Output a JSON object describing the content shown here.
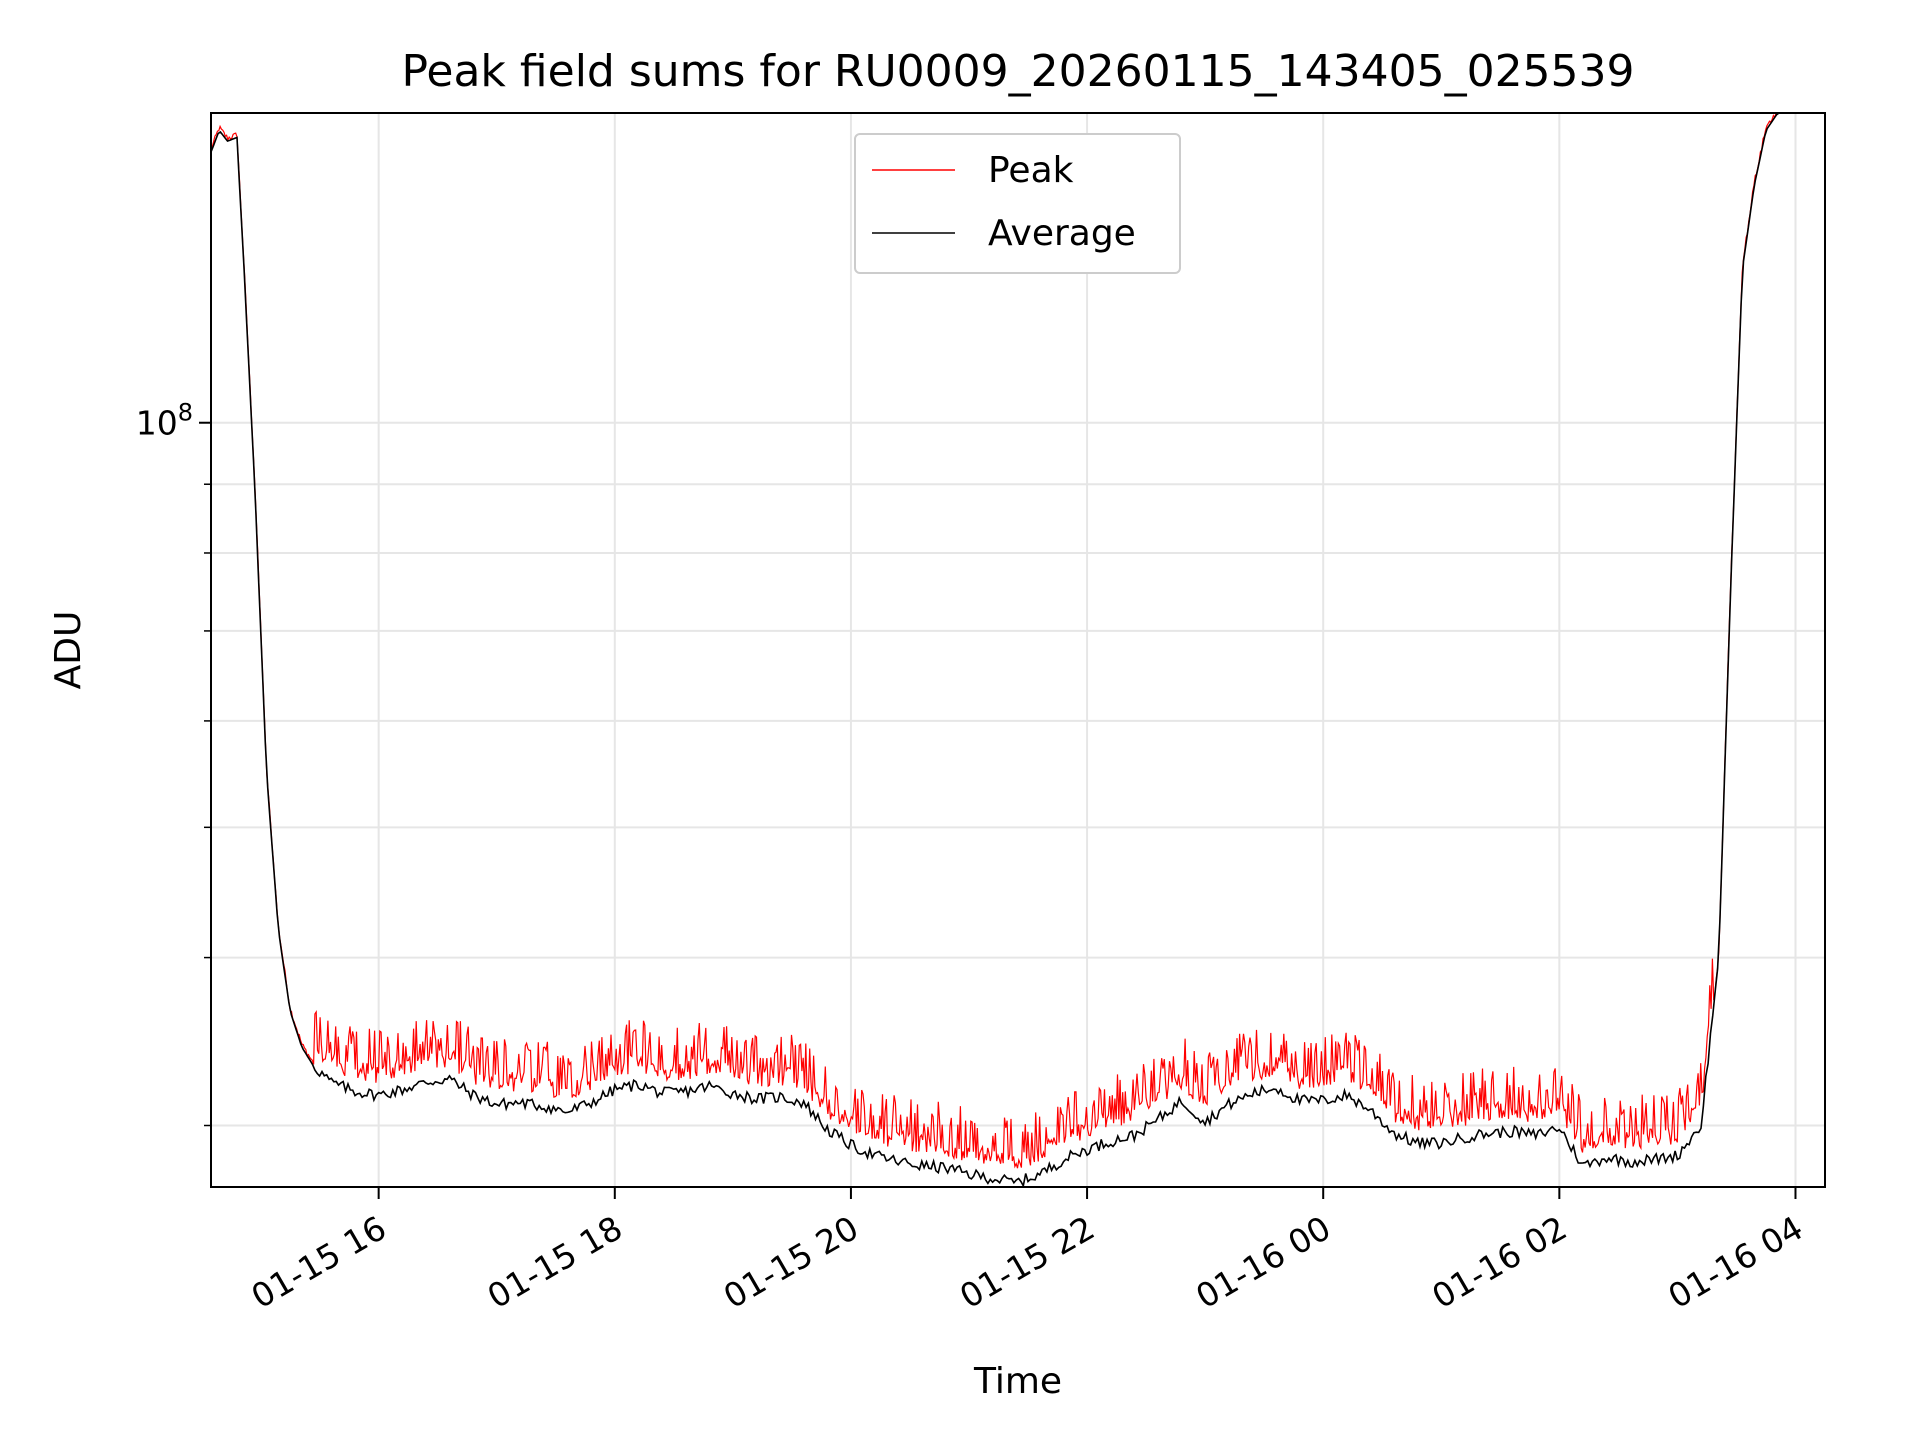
{
  "chart_data": {
    "type": "line",
    "title": "Peak field sums for RU0009_20260115_143405_025539",
    "xlabel": "Time",
    "ylabel": "ADU",
    "yscale": "log",
    "ylim": [
      27000000,
      170000000
    ],
    "xlim_hours": [
      14.58,
      28.25
    ],
    "y_tick_major": [
      {
        "value": 100000000,
        "base": "10",
        "exp": "8"
      }
    ],
    "y_tick_minor": [
      30000000,
      40000000,
      50000000,
      60000000,
      70000000,
      80000000,
      90000000,
      200000000
    ],
    "x_ticks": [
      {
        "hour": 16,
        "label": "01-15 16"
      },
      {
        "hour": 18,
        "label": "01-15 18"
      },
      {
        "hour": 20,
        "label": "01-15 20"
      },
      {
        "hour": 22,
        "label": "01-15 22"
      },
      {
        "hour": 24,
        "label": "01-16 00"
      },
      {
        "hour": 26,
        "label": "01-16 02"
      },
      {
        "hour": 28,
        "label": "01-16 04"
      }
    ],
    "grid": true,
    "legend_position": "top-center",
    "series": [
      {
        "name": "Peak",
        "color": "#ff0000",
        "role": "peak"
      },
      {
        "name": "Average",
        "color": "#000000",
        "role": "average",
        "x_hours": [
          14.58,
          14.65,
          14.72,
          14.8,
          14.86,
          14.95,
          15.05,
          15.15,
          15.25,
          15.35,
          15.45,
          15.6,
          15.8,
          16.0,
          16.2,
          16.4,
          16.6,
          16.8,
          17.0,
          17.2,
          17.4,
          17.6,
          17.8,
          18.0,
          18.2,
          18.4,
          18.6,
          18.8,
          19.0,
          19.2,
          19.4,
          19.6,
          19.8,
          20.0,
          20.2,
          20.4,
          20.6,
          20.8,
          21.0,
          21.2,
          21.4,
          21.6,
          21.8,
          22.0,
          22.2,
          22.4,
          22.6,
          22.8,
          23.0,
          23.2,
          23.4,
          23.6,
          23.8,
          24.0,
          24.2,
          24.4,
          24.6,
          24.8,
          25.0,
          25.2,
          25.4,
          25.6,
          25.8,
          26.0,
          26.2,
          26.4,
          26.6,
          26.8,
          27.0,
          27.2,
          27.35,
          27.45,
          27.55,
          27.65,
          27.75,
          27.85,
          27.95,
          28.05,
          28.15,
          28.25
        ],
        "values": [
          159000000,
          165000000,
          162000000,
          163000000,
          130000000,
          90000000,
          55000000,
          42000000,
          36500000,
          34300000,
          33200000,
          32300000,
          31800000,
          31600000,
          31900000,
          32300000,
          32500000,
          31600000,
          31100000,
          31200000,
          31000000,
          30700000,
          31200000,
          31900000,
          32200000,
          31700000,
          31800000,
          32100000,
          31700000,
          31400000,
          31500000,
          31200000,
          29800000,
          29000000,
          28500000,
          28200000,
          28000000,
          27900000,
          27600000,
          27400000,
          27200000,
          27600000,
          28300000,
          28800000,
          29200000,
          29500000,
          30300000,
          31300000,
          30200000,
          31100000,
          31700000,
          32000000,
          31300000,
          31300000,
          31600000,
          30800000,
          29600000,
          29100000,
          29100000,
          29400000,
          29600000,
          29700000,
          29500000,
          29900000,
          28000000,
          28400000,
          28200000,
          28300000,
          28500000,
          30000000,
          40000000,
          75000000,
          130000000,
          150000000,
          165000000,
          170000000,
          170000000,
          170000000,
          170000000,
          170000000
        ]
      }
    ]
  }
}
